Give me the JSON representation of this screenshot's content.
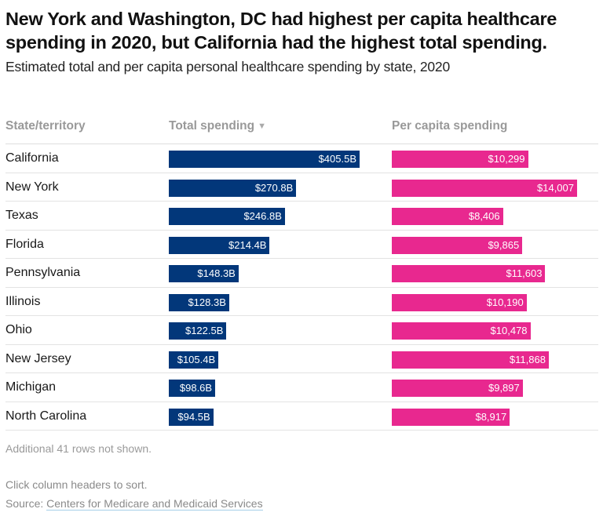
{
  "header": {
    "title": "New York and Washington, DC had highest per capita healthcare spending in 2020, but California had the highest total spending.",
    "subtitle": "Estimated total and per capita personal healthcare spending by state, 2020"
  },
  "table": {
    "columns": [
      {
        "label": "State/territory",
        "sorted": false
      },
      {
        "label": "Total spending",
        "sorted": true,
        "sort_icon": "▼"
      },
      {
        "label": "Per capita spending",
        "sorted": false
      }
    ],
    "rows": [
      {
        "state": "California",
        "total": 405.5,
        "total_label": "$405.5B",
        "per_capita": 10299,
        "per_capita_label": "$10,299"
      },
      {
        "state": "New York",
        "total": 270.8,
        "total_label": "$270.8B",
        "per_capita": 14007,
        "per_capita_label": "$14,007"
      },
      {
        "state": "Texas",
        "total": 246.8,
        "total_label": "$246.8B",
        "per_capita": 8406,
        "per_capita_label": "$8,406"
      },
      {
        "state": "Florida",
        "total": 214.4,
        "total_label": "$214.4B",
        "per_capita": 9865,
        "per_capita_label": "$9,865"
      },
      {
        "state": "Pennsylvania",
        "total": 148.3,
        "total_label": "$148.3B",
        "per_capita": 11603,
        "per_capita_label": "$11,603"
      },
      {
        "state": "Illinois",
        "total": 128.3,
        "total_label": "$128.3B",
        "per_capita": 10190,
        "per_capita_label": "$10,190"
      },
      {
        "state": "Ohio",
        "total": 122.5,
        "total_label": "$122.5B",
        "per_capita": 10478,
        "per_capita_label": "$10,478"
      },
      {
        "state": "New Jersey",
        "total": 105.4,
        "total_label": "$105.4B",
        "per_capita": 11868,
        "per_capita_label": "$11,868"
      },
      {
        "state": "Michigan",
        "total": 98.6,
        "total_label": "$98.6B",
        "per_capita": 9897,
        "per_capita_label": "$9,897"
      },
      {
        "state": "North Carolina",
        "total": 94.5,
        "total_label": "$94.5B",
        "per_capita": 8917,
        "per_capita_label": "$8,917"
      }
    ],
    "more_rows_note": "Additional 41 rows not shown."
  },
  "footer": {
    "sort_hint": "Click column headers to sort.",
    "source_prefix": "Source: ",
    "source_link": "Centers for Medicare and Medicaid Services"
  },
  "colors": {
    "total_bar": "#02377a",
    "per_capita_bar": "#e8288f"
  },
  "chart_data": {
    "type": "table",
    "title": "New York and Washington, DC had highest per capita healthcare spending in 2020, but California had the highest total spending.",
    "subtitle": "Estimated total and per capita personal healthcare spending by state, 2020",
    "categories": [
      "California",
      "New York",
      "Texas",
      "Florida",
      "Pennsylvania",
      "Illinois",
      "Ohio",
      "New Jersey",
      "Michigan",
      "North Carolina"
    ],
    "series": [
      {
        "name": "Total spending",
        "unit": "billion USD",
        "values": [
          405.5,
          270.8,
          246.8,
          214.4,
          148.3,
          128.3,
          122.5,
          105.4,
          98.6,
          94.5
        ]
      },
      {
        "name": "Per capita spending",
        "unit": "USD",
        "values": [
          10299,
          14007,
          8406,
          9865,
          11603,
          10190,
          10478,
          11868,
          9897,
          8917
        ]
      }
    ],
    "sorted_by": "Total spending",
    "sort_order": "descending"
  }
}
